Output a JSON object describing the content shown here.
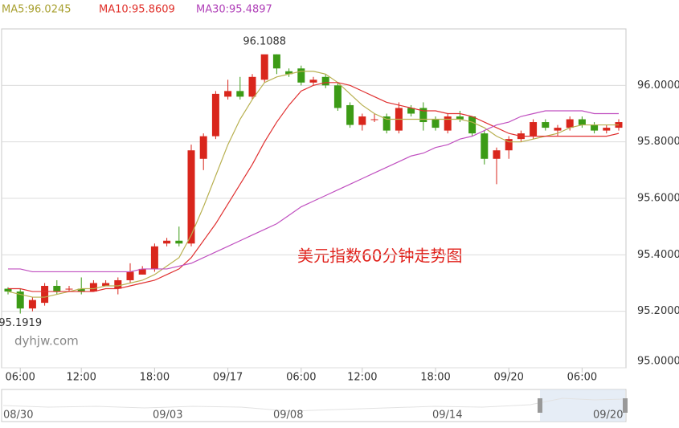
{
  "chart_data": {
    "type": "candlestick",
    "title": "美元指数60分钟走势图",
    "watermark": "dyhjw.com",
    "legend": [
      {
        "text": "MA5:96.0245",
        "color": "#a8a030"
      },
      {
        "text": "MA10:95.8609",
        "color": "#e0302a"
      },
      {
        "text": "MA30:95.4897",
        "color": "#b040b8"
      }
    ],
    "categories": [
      null,
      "06:00",
      null,
      null,
      null,
      null,
      "12:00",
      null,
      null,
      null,
      null,
      null,
      "18:00",
      null,
      null,
      null,
      null,
      null,
      "09/17",
      null,
      null,
      null,
      null,
      null,
      "06:00",
      null,
      null,
      null,
      null,
      "12:00",
      null,
      null,
      null,
      null,
      null,
      "18:00",
      null,
      null,
      null,
      null,
      null,
      "09/20",
      null,
      null,
      null,
      null,
      null,
      "06:00",
      null,
      null,
      null
    ],
    "ohlc": [
      [
        95.28,
        95.285,
        95.26,
        95.27
      ],
      [
        95.27,
        95.28,
        95.1919,
        95.21
      ],
      [
        95.21,
        95.25,
        95.2,
        95.24
      ],
      [
        95.23,
        95.3,
        95.22,
        95.29
      ],
      [
        95.29,
        95.31,
        95.26,
        95.27
      ],
      [
        95.28,
        95.29,
        95.27,
        95.28
      ],
      [
        95.28,
        95.32,
        95.26,
        95.27
      ],
      [
        95.27,
        95.31,
        95.27,
        95.3
      ],
      [
        95.29,
        95.31,
        95.29,
        95.3
      ],
      [
        95.28,
        95.32,
        95.26,
        95.31
      ],
      [
        95.31,
        95.37,
        95.3,
        95.34
      ],
      [
        95.33,
        95.36,
        95.33,
        95.35
      ],
      [
        95.35,
        95.44,
        95.34,
        95.43
      ],
      [
        95.44,
        95.46,
        95.43,
        95.45
      ],
      [
        95.45,
        95.5,
        95.43,
        95.44
      ],
      [
        95.44,
        95.79,
        95.43,
        95.77
      ],
      [
        95.74,
        95.83,
        95.7,
        95.82
      ],
      [
        95.82,
        95.98,
        95.81,
        95.97
      ],
      [
        95.96,
        96.02,
        95.95,
        95.98
      ],
      [
        95.98,
        96.03,
        95.95,
        95.96
      ],
      [
        95.96,
        96.04,
        95.95,
        96.03
      ],
      [
        96.02,
        96.1088,
        96.01,
        96.11
      ],
      [
        96.11,
        96.11,
        96.04,
        96.06
      ],
      [
        96.05,
        96.06,
        96.03,
        96.04
      ],
      [
        96.06,
        96.07,
        96.0,
        96.01
      ],
      [
        96.01,
        96.03,
        96.0,
        96.02
      ],
      [
        96.03,
        96.04,
        95.99,
        96.0
      ],
      [
        96.0,
        96.01,
        95.91,
        95.92
      ],
      [
        95.93,
        95.94,
        95.85,
        95.86
      ],
      [
        95.86,
        95.9,
        95.84,
        95.89
      ],
      [
        95.88,
        95.9,
        95.87,
        95.88
      ],
      [
        95.89,
        95.9,
        95.83,
        95.84
      ],
      [
        95.84,
        95.94,
        95.83,
        95.92
      ],
      [
        95.92,
        95.93,
        95.89,
        95.9
      ],
      [
        95.92,
        95.94,
        95.84,
        95.87
      ],
      [
        95.88,
        95.89,
        95.84,
        95.85
      ],
      [
        95.84,
        95.9,
        95.83,
        95.89
      ],
      [
        95.89,
        95.91,
        95.87,
        95.88
      ],
      [
        95.89,
        95.89,
        95.82,
        95.83
      ],
      [
        95.83,
        95.84,
        95.72,
        95.74
      ],
      [
        95.74,
        95.78,
        95.65,
        95.77
      ],
      [
        95.77,
        95.82,
        95.74,
        95.81
      ],
      [
        95.81,
        95.84,
        95.8,
        95.83
      ],
      [
        95.82,
        95.88,
        95.81,
        95.87
      ],
      [
        95.87,
        95.88,
        95.84,
        95.85
      ],
      [
        95.84,
        95.86,
        95.82,
        95.85
      ],
      [
        95.85,
        95.89,
        95.84,
        95.88
      ],
      [
        95.88,
        95.89,
        95.85,
        95.86
      ],
      [
        95.86,
        95.87,
        95.83,
        95.84
      ],
      [
        95.84,
        95.86,
        95.83,
        95.85
      ],
      [
        95.85,
        95.88,
        95.84,
        95.87
      ]
    ],
    "up_color": "#d9261c",
    "down_color": "#3c9b16",
    "series": [
      {
        "name": "MA5",
        "color": "#b8b050",
        "values": [
          95.27,
          95.26,
          95.25,
          95.25,
          95.26,
          95.27,
          95.28,
          95.28,
          95.29,
          95.29,
          95.3,
          95.31,
          95.33,
          95.36,
          95.39,
          95.47,
          95.57,
          95.68,
          95.79,
          95.88,
          95.95,
          96.01,
          96.03,
          96.04,
          96.05,
          96.05,
          96.04,
          96.01,
          95.97,
          95.93,
          95.9,
          95.88,
          95.88,
          95.88,
          95.88,
          95.88,
          95.88,
          95.88,
          95.87,
          95.85,
          95.82,
          95.8,
          95.8,
          95.81,
          95.82,
          95.83,
          95.85,
          95.86,
          95.86,
          95.86,
          95.86
        ]
      },
      {
        "name": "MA10",
        "color": "#e03030",
        "values": [
          95.28,
          95.28,
          95.27,
          95.27,
          95.27,
          95.27,
          95.27,
          95.27,
          95.28,
          95.28,
          95.29,
          95.3,
          95.31,
          95.33,
          95.35,
          95.39,
          95.45,
          95.51,
          95.58,
          95.65,
          95.72,
          95.8,
          95.87,
          95.93,
          95.98,
          96.0,
          96.01,
          96.01,
          96.0,
          95.98,
          95.96,
          95.94,
          95.93,
          95.92,
          95.91,
          95.91,
          95.9,
          95.9,
          95.89,
          95.87,
          95.85,
          95.83,
          95.82,
          95.82,
          95.82,
          95.82,
          95.82,
          95.82,
          95.82,
          95.82,
          95.83
        ]
      },
      {
        "name": "MA30",
        "color": "#c050c0",
        "values": [
          95.35,
          95.35,
          95.34,
          95.34,
          95.34,
          95.34,
          95.34,
          95.34,
          95.34,
          95.34,
          95.34,
          95.35,
          95.35,
          95.35,
          95.36,
          95.37,
          95.39,
          95.41,
          95.43,
          95.45,
          95.47,
          95.49,
          95.51,
          95.54,
          95.57,
          95.59,
          95.61,
          95.63,
          95.65,
          95.67,
          95.69,
          95.71,
          95.73,
          95.75,
          95.76,
          95.78,
          95.79,
          95.81,
          95.82,
          95.84,
          95.86,
          95.87,
          95.89,
          95.9,
          95.91,
          95.91,
          95.91,
          95.91,
          95.9,
          95.9,
          95.9
        ]
      }
    ],
    "annotations": [
      96.1088,
      95.1919
    ],
    "ylim": [
      95.0,
      96.2
    ],
    "yticks": [
      {
        "value": 95.0,
        "label": "95.0000"
      },
      {
        "value": 95.2,
        "label": "95.2000"
      },
      {
        "value": 95.4,
        "label": "95.4000"
      },
      {
        "value": 95.6,
        "label": "95.6000"
      },
      {
        "value": 95.8,
        "label": "95.8000"
      },
      {
        "value": 96.0,
        "label": "96.0000"
      }
    ],
    "grid": true,
    "navigator_labels": [
      "08/30",
      "09/03",
      "09/08",
      "09/14",
      "09/20"
    ]
  }
}
